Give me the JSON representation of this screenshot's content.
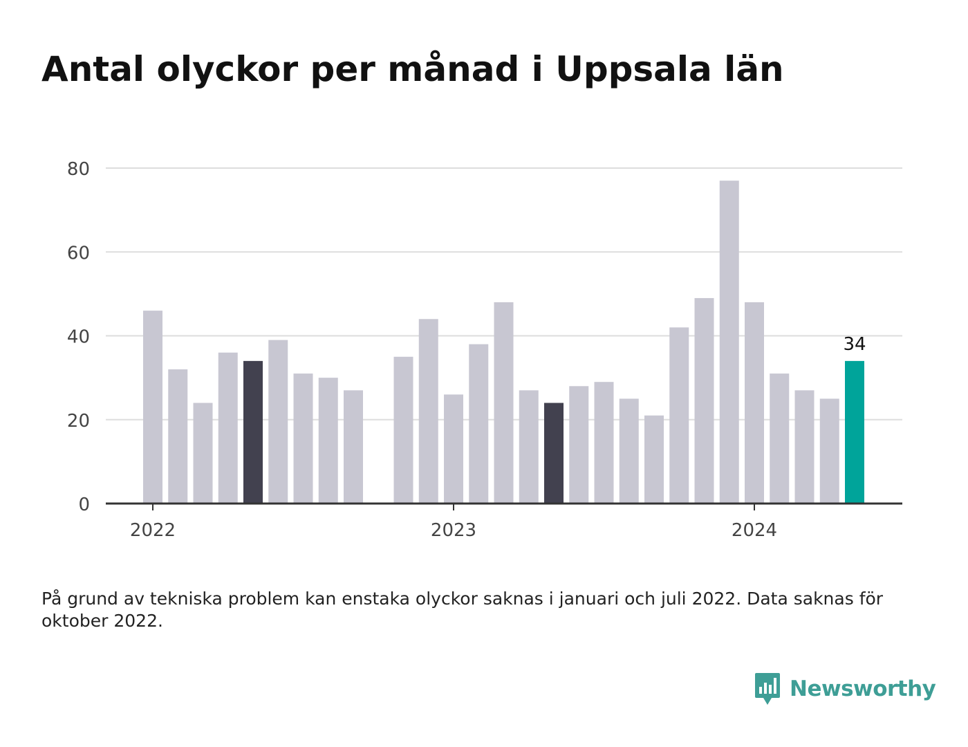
{
  "title": "Antal olyckor per månad i Uppsala län",
  "footnote": "På grund av tekniska problem kan enstaka olyckor saknas i januari och juli 2022. Data saknas för oktober 2022.",
  "brand": {
    "name": "Newsworthy",
    "color": "#3e9e96",
    "icon": "newsworthy-logo-icon"
  },
  "colors": {
    "bar_default": "#c8c7d2",
    "bar_dark": "#42414f",
    "bar_highlight": "#00a49a",
    "grid": "#dddddd",
    "axis": "#333333",
    "tick_text": "#444444"
  },
  "chart_data": {
    "type": "bar",
    "title": "Antal olyckor per månad i Uppsala län",
    "xlabel": "",
    "ylabel": "",
    "ylim": [
      0,
      80
    ],
    "yticks": [
      0,
      20,
      40,
      60,
      80
    ],
    "xticks": [
      {
        "label": "2022",
        "at": "2022-01"
      },
      {
        "label": "2023",
        "at": "2023-01"
      },
      {
        "label": "2024",
        "at": "2024-01"
      }
    ],
    "grid": true,
    "categories": [
      "2022-01",
      "2022-02",
      "2022-03",
      "2022-04",
      "2022-05",
      "2022-06",
      "2022-07",
      "2022-08",
      "2022-09",
      "2022-10",
      "2022-11",
      "2022-12",
      "2023-01",
      "2023-02",
      "2023-03",
      "2023-04",
      "2023-05",
      "2023-06",
      "2023-07",
      "2023-08",
      "2023-09",
      "2023-10",
      "2023-11",
      "2023-12",
      "2024-01",
      "2024-02",
      "2024-03",
      "2024-04",
      "2024-05"
    ],
    "values": [
      46,
      32,
      24,
      36,
      34,
      39,
      31,
      30,
      27,
      null,
      35,
      44,
      26,
      38,
      48,
      27,
      24,
      28,
      29,
      25,
      21,
      42,
      49,
      77,
      48,
      31,
      27,
      25,
      34
    ],
    "dark_categories": [
      "2022-05",
      "2023-05"
    ],
    "highlight_category": "2024-05",
    "highlight_label": "34"
  }
}
